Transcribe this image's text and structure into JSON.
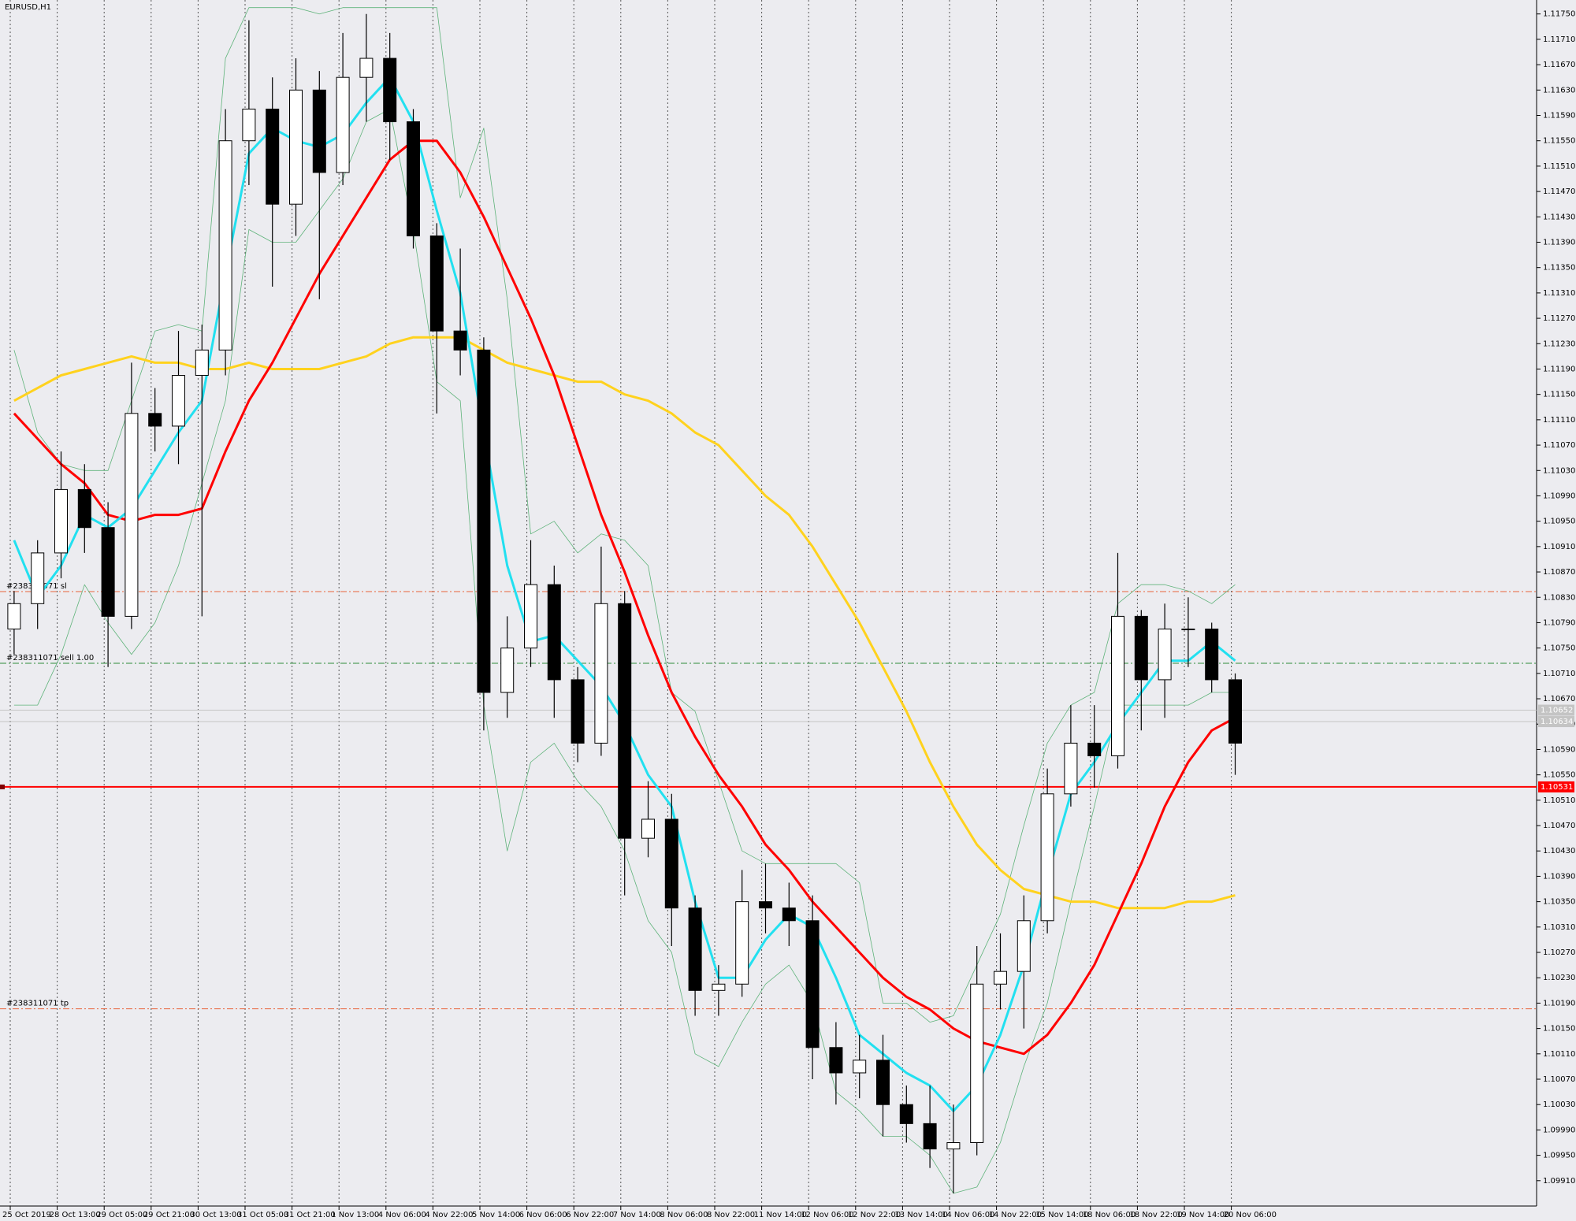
{
  "chart_data": {
    "type": "candlestick",
    "title": "EURUSD,H1",
    "x_labels": [
      "25 Oct 2019",
      "28 Oct 13:00",
      "29 Oct 05:00",
      "29 Oct 21:00",
      "30 Oct 13:00",
      "31 Oct 05:00",
      "31 Oct 21:00",
      "1 Nov 13:00",
      "4 Nov 06:00",
      "4 Nov 22:00",
      "5 Nov 14:00",
      "6 Nov 06:00",
      "6 Nov 22:00",
      "7 Nov 14:00",
      "8 Nov 06:00",
      "8 Nov 22:00",
      "11 Nov 14:00",
      "12 Nov 06:00",
      "12 Nov 22:00",
      "13 Nov 14:00",
      "14 Nov 06:00",
      "14 Nov 22:00",
      "15 Nov 14:00",
      "18 Nov 06:00",
      "18 Nov 22:00",
      "19 Nov 14:00",
      "20 Nov 06:00"
    ],
    "open": [
      1.1078,
      1.1082,
      1.109,
      1.11,
      1.1094,
      1.108,
      1.1112,
      1.111,
      1.1118,
      1.1122,
      1.1155,
      1.116,
      1.1145,
      1.1163,
      1.115,
      1.1165,
      1.1168,
      1.1158,
      1.114,
      1.1125,
      1.1122,
      1.1068,
      1.1075,
      1.1085,
      1.107,
      1.106,
      1.1082,
      1.1045,
      1.1048,
      1.1034,
      1.1021,
      1.1022,
      1.1035,
      1.1034,
      1.1032,
      1.1012,
      1.1008,
      1.101,
      1.1003,
      1.1,
      1.0996,
      1.0997,
      1.1022,
      1.1024,
      1.1032,
      1.1052,
      1.106,
      1.1058,
      1.108,
      1.107,
      1.1078,
      1.1078,
      1.107
    ],
    "high": [
      1.1084,
      1.1092,
      1.1106,
      1.1104,
      1.1098,
      1.112,
      1.1116,
      1.1125,
      1.1126,
      1.116,
      1.1174,
      1.1165,
      1.1168,
      1.1166,
      1.1172,
      1.1175,
      1.1172,
      1.116,
      1.1142,
      1.1138,
      1.1124,
      1.108,
      1.1092,
      1.1088,
      1.1072,
      1.1091,
      1.1084,
      1.1054,
      1.1052,
      1.1036,
      1.1025,
      1.104,
      1.1041,
      1.1038,
      1.1036,
      1.1016,
      1.1014,
      1.1014,
      1.1006,
      1.1006,
      1.1003,
      1.1028,
      1.103,
      1.1036,
      1.1056,
      1.1066,
      1.1066,
      1.109,
      1.1081,
      1.1082,
      1.1083,
      1.1079,
      1.1071
    ],
    "low": [
      1.1074,
      1.1078,
      1.1086,
      1.109,
      1.1072,
      1.1078,
      1.1106,
      1.1104,
      1.108,
      1.1118,
      1.1148,
      1.1132,
      1.114,
      1.113,
      1.1148,
      1.1158,
      1.1152,
      1.1138,
      1.1112,
      1.1118,
      1.1062,
      1.1064,
      1.1072,
      1.1064,
      1.1057,
      1.1058,
      1.1036,
      1.1042,
      1.1028,
      1.1017,
      1.1017,
      1.102,
      1.103,
      1.1028,
      1.1007,
      1.1003,
      1.1004,
      1.0998,
      1.0997,
      1.0993,
      1.0989,
      1.0995,
      1.1018,
      1.1015,
      1.103,
      1.105,
      1.1053,
      1.1056,
      1.1062,
      1.1064,
      1.1072,
      1.1068,
      1.1055
    ],
    "close": [
      1.1082,
      1.109,
      1.11,
      1.1094,
      1.108,
      1.1112,
      1.111,
      1.1118,
      1.1122,
      1.1155,
      1.116,
      1.1145,
      1.1163,
      1.115,
      1.1165,
      1.1168,
      1.1158,
      1.114,
      1.1125,
      1.1122,
      1.1068,
      1.1075,
      1.1085,
      1.107,
      1.106,
      1.1082,
      1.1045,
      1.1048,
      1.1034,
      1.1021,
      1.1022,
      1.1035,
      1.1034,
      1.1032,
      1.1012,
      1.1008,
      1.101,
      1.1003,
      1.1,
      1.0996,
      1.0997,
      1.1022,
      1.1024,
      1.1032,
      1.1052,
      1.106,
      1.1058,
      1.108,
      1.107,
      1.1078,
      1.1078,
      1.107,
      1.106
    ],
    "series": [
      {
        "color": "#5fb37a",
        "line_width": 0.8,
        "values": [
          1.1122,
          1.1109,
          1.1104,
          1.1103,
          1.1103,
          1.1114,
          1.1125,
          1.1126,
          1.1125,
          1.1168,
          1.1176,
          1.1176,
          1.1176,
          1.1175,
          1.1176,
          1.1176,
          1.1176,
          1.1176,
          1.1176,
          1.1146,
          1.1157,
          1.113,
          1.1093,
          1.1095,
          1.109,
          1.1093,
          1.1092,
          1.1088,
          1.1068,
          1.1065,
          1.1054,
          1.1043,
          1.1041,
          1.1041,
          1.1041,
          1.1041,
          1.1038,
          1.1019,
          1.1019,
          1.1016,
          1.1017,
          1.1025,
          1.1033,
          1.1047,
          1.106,
          1.1066,
          1.1068,
          1.1082,
          1.1085,
          1.1085,
          1.1084,
          1.1082,
          1.1085
        ]
      },
      {
        "color": "#5fb37a",
        "line_width": 0.8,
        "values": [
          1.1066,
          1.1066,
          1.1074,
          1.1085,
          1.1079,
          1.1074,
          1.1079,
          1.1088,
          1.1101,
          1.1114,
          1.1141,
          1.1139,
          1.1139,
          1.1144,
          1.1149,
          1.1158,
          1.116,
          1.1141,
          1.1117,
          1.1114,
          1.1066,
          1.1043,
          1.1057,
          1.106,
          1.1054,
          1.105,
          1.1043,
          1.1032,
          1.1027,
          1.1011,
          1.1009,
          1.1016,
          1.1022,
          1.1025,
          1.1019,
          1.1005,
          1.1002,
          1.0998,
          1.0998,
          1.0995,
          1.0989,
          1.099,
          1.0997,
          1.1009,
          1.1019,
          1.1035,
          1.105,
          1.1066,
          1.1066,
          1.1066,
          1.1066,
          1.1068,
          1.1068
        ]
      },
      {
        "color": "#ffd21e",
        "line_width": 3,
        "values": [
          1.1114,
          1.1116,
          1.1118,
          1.1119,
          1.112,
          1.1121,
          1.112,
          1.112,
          1.1119,
          1.1119,
          1.112,
          1.1119,
          1.1119,
          1.1119,
          1.112,
          1.1121,
          1.1123,
          1.1124,
          1.1124,
          1.1124,
          1.1122,
          1.112,
          1.1119,
          1.1118,
          1.1117,
          1.1117,
          1.1115,
          1.1114,
          1.1112,
          1.1109,
          1.1107,
          1.1103,
          1.1099,
          1.1096,
          1.1091,
          1.1085,
          1.1079,
          1.1072,
          1.1065,
          1.1057,
          1.105,
          1.1044,
          1.104,
          1.1037,
          1.1036,
          1.1035,
          1.1035,
          1.1034,
          1.1034,
          1.1034,
          1.1035,
          1.1035,
          1.1036
        ]
      },
      {
        "color": "#ff0000",
        "line_width": 3,
        "values": [
          1.1112,
          1.1108,
          1.1104,
          1.1101,
          1.1096,
          1.1095,
          1.1096,
          1.1096,
          1.1097,
          1.1106,
          1.1114,
          1.112,
          1.1127,
          1.1134,
          1.114,
          1.1146,
          1.1152,
          1.1155,
          1.1155,
          1.115,
          1.1143,
          1.1135,
          1.1127,
          1.1118,
          1.1107,
          1.1096,
          1.1087,
          1.1077,
          1.1068,
          1.1061,
          1.1055,
          1.105,
          1.1044,
          1.104,
          1.1035,
          1.1031,
          1.1027,
          1.1023,
          1.102,
          1.1018,
          1.1015,
          1.1013,
          1.1012,
          1.1011,
          1.1014,
          1.1019,
          1.1025,
          1.1033,
          1.1041,
          1.105,
          1.1057,
          1.1062,
          1.1064
        ]
      },
      {
        "color": "#22e0f0",
        "line_width": 3,
        "values": [
          1.1092,
          1.1083,
          1.1088,
          1.1096,
          1.1094,
          1.1097,
          1.1103,
          1.1109,
          1.1114,
          1.1134,
          1.1153,
          1.1157,
          1.1155,
          1.1154,
          1.1156,
          1.1161,
          1.1165,
          1.1158,
          1.1144,
          1.1131,
          1.1109,
          1.1088,
          1.1076,
          1.1077,
          1.1073,
          1.1069,
          1.1063,
          1.1055,
          1.105,
          1.1035,
          1.1023,
          1.1023,
          1.1029,
          1.1033,
          1.1031,
          1.1023,
          1.1014,
          1.1011,
          1.1008,
          1.1006,
          1.1002,
          1.1006,
          1.1014,
          1.1025,
          1.1039,
          1.1052,
          1.1057,
          1.1063,
          1.1068,
          1.1073,
          1.1073,
          1.1076,
          1.1073
        ]
      }
    ],
    "levels": [
      {
        "label": "#238311071 sl",
        "value": 1.10839,
        "color": "#e8643c"
      },
      {
        "label": "#238311071 sell 1.00",
        "value": 1.10726,
        "color": "#2e8b3a"
      },
      {
        "label": "#238311071 tp",
        "value": 1.10181,
        "color": "#e8643c"
      }
    ],
    "price_lines": [
      {
        "label": "1.10652",
        "value": 1.10652,
        "color": "#c4c4c4"
      },
      {
        "label": "1.10634",
        "value": 1.10634,
        "color": "#c4c4c4"
      },
      {
        "label": "1.10531",
        "value": 1.10531,
        "color": "#ff0000"
      }
    ],
    "ylim": [
      1.0987,
      1.11772
    ],
    "yticks": [
      {
        "value": 1.1175,
        "label": "1.11750"
      },
      {
        "value": 1.1171,
        "label": "1.11710"
      },
      {
        "value": 1.1167,
        "label": "1.11670"
      },
      {
        "value": 1.1163,
        "label": "1.11630"
      },
      {
        "value": 1.1159,
        "label": "1.11590"
      },
      {
        "value": 1.1155,
        "label": "1.11550"
      },
      {
        "value": 1.1151,
        "label": "1.11510"
      },
      {
        "value": 1.1147,
        "label": "1.11470"
      },
      {
        "value": 1.1143,
        "label": "1.11430"
      },
      {
        "value": 1.1139,
        "label": "1.11390"
      },
      {
        "value": 1.1135,
        "label": "1.11350"
      },
      {
        "value": 1.1131,
        "label": "1.11310"
      },
      {
        "value": 1.1127,
        "label": "1.11270"
      },
      {
        "value": 1.1123,
        "label": "1.11230"
      },
      {
        "value": 1.1119,
        "label": "1.11190"
      },
      {
        "value": 1.1115,
        "label": "1.11150"
      },
      {
        "value": 1.1111,
        "label": "1.11110"
      },
      {
        "value": 1.1107,
        "label": "1.11070"
      },
      {
        "value": 1.1103,
        "label": "1.11030"
      },
      {
        "value": 1.1099,
        "label": "1.10990"
      },
      {
        "value": 1.1095,
        "label": "1.10950"
      },
      {
        "value": 1.1091,
        "label": "1.10910"
      },
      {
        "value": 1.1087,
        "label": "1.10870"
      },
      {
        "value": 1.1083,
        "label": "1.10830"
      },
      {
        "value": 1.1079,
        "label": "1.10790"
      },
      {
        "value": 1.1075,
        "label": "1.10750"
      },
      {
        "value": 1.1071,
        "label": "1.10710"
      },
      {
        "value": 1.1067,
        "label": "1.10670"
      },
      {
        "value": 1.1063,
        "label": "1.10630"
      },
      {
        "value": 1.1059,
        "label": "1.10590"
      },
      {
        "value": 1.1055,
        "label": "1.10550"
      },
      {
        "value": 1.1051,
        "label": "1.10510"
      },
      {
        "value": 1.1047,
        "label": "1.10470"
      },
      {
        "value": 1.1043,
        "label": "1.10430"
      },
      {
        "value": 1.1039,
        "label": "1.10390"
      },
      {
        "value": 1.1035,
        "label": "1.10350"
      },
      {
        "value": 1.1031,
        "label": "1.10310"
      },
      {
        "value": 1.1027,
        "label": "1.10270"
      },
      {
        "value": 1.1023,
        "label": "1.10230"
      },
      {
        "value": 1.1019,
        "label": "1.10190"
      },
      {
        "value": 1.1015,
        "label": "1.10150"
      },
      {
        "value": 1.1011,
        "label": "1.10110"
      },
      {
        "value": 1.1007,
        "label": "1.10070"
      },
      {
        "value": 1.1003,
        "label": "1.10030"
      },
      {
        "value": 1.0999,
        "label": "1.09990"
      },
      {
        "value": 1.0995,
        "label": "1.09950"
      },
      {
        "value": 1.0991,
        "label": "1.09910"
      }
    ],
    "grid": true
  }
}
